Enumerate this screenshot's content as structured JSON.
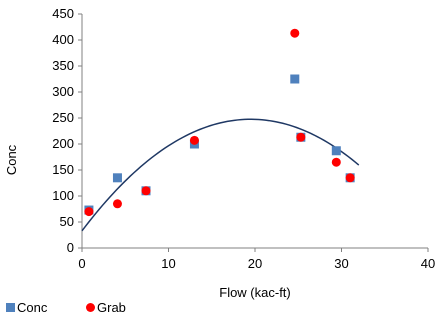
{
  "chart_data": {
    "type": "scatter",
    "title": "",
    "xlabel": "Flow (kac-ft)",
    "ylabel": "Conc",
    "xlim": [
      0,
      40
    ],
    "ylim": [
      0,
      450
    ],
    "xticks": [
      0,
      10,
      20,
      30,
      40
    ],
    "yticks": [
      0,
      50,
      100,
      150,
      200,
      250,
      300,
      350,
      400,
      450
    ],
    "grid": false,
    "legend_position": "bottom-left",
    "series": [
      {
        "name": "Conc",
        "marker": "square",
        "color": "#4f81bd",
        "x": [
          0.8,
          4.1,
          7.4,
          13.0,
          24.6,
          25.3,
          29.4,
          31.0
        ],
        "y": [
          73,
          135,
          110,
          200,
          325,
          213,
          187,
          135
        ]
      },
      {
        "name": "Grab",
        "marker": "circle",
        "color": "#ff0000",
        "x": [
          0.8,
          4.1,
          7.4,
          13.0,
          24.6,
          25.3,
          29.4,
          31.0
        ],
        "y": [
          70,
          85,
          110,
          207,
          413,
          213,
          165,
          135
        ]
      }
    ],
    "trendline": {
      "type": "polynomial",
      "color": "#1f3864",
      "x_range": [
        0,
        32
      ],
      "coefficients": [
        33,
        22,
        -0.564
      ]
    }
  }
}
